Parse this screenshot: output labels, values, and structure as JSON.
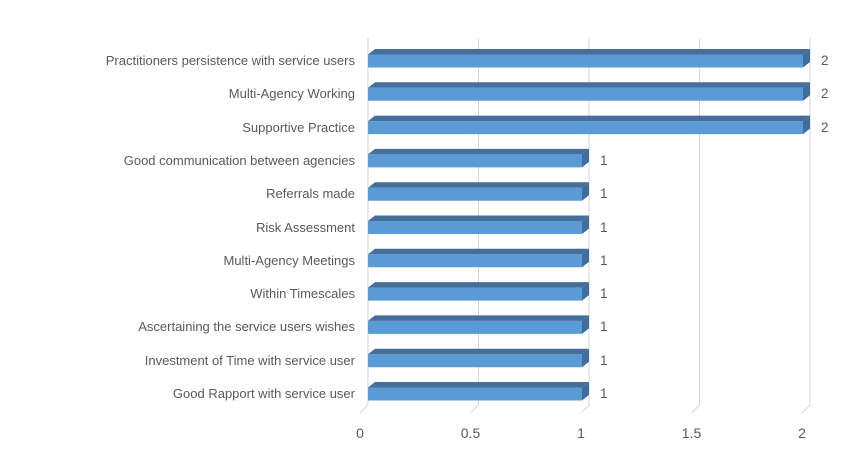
{
  "page": {
    "background": "#FFFFFF"
  },
  "chart_data": {
    "type": "bar",
    "orientation": "horizontal",
    "style": "3d-bevel",
    "title": "",
    "xlabel": "",
    "ylabel": "",
    "legend": "none",
    "grid": true,
    "categories": [
      "Practitioners persistence with service users",
      "Multi-Agency Working",
      "Supportive Practice",
      "Good communication between agencies",
      "Referrals made",
      "Risk Assessment",
      "Multi-Agency Meetings",
      "Within Timescales",
      "Ascertaining the service users wishes",
      "Investment of Time with service user",
      "Good Rapport with service user"
    ],
    "values": [
      2,
      2,
      2,
      1,
      1,
      1,
      1,
      1,
      1,
      1,
      1
    ],
    "data_labels": [
      "2",
      "2",
      "2",
      "1",
      "1",
      "1",
      "1",
      "1",
      "1",
      "1",
      "1"
    ],
    "xlim": [
      0,
      2
    ],
    "x_ticks": [
      0,
      0.5,
      1,
      1.5,
      2
    ],
    "x_tick_labels": [
      "0",
      "0.5",
      "1",
      "1.5",
      "2"
    ],
    "colors": {
      "bar_front": "#5B9BD5",
      "bar_top": "#456E9B",
      "bar_side": "#3F6D9D",
      "gridline": "#D6D6D6",
      "text": "#595959",
      "background": "#FFFFFF"
    }
  }
}
